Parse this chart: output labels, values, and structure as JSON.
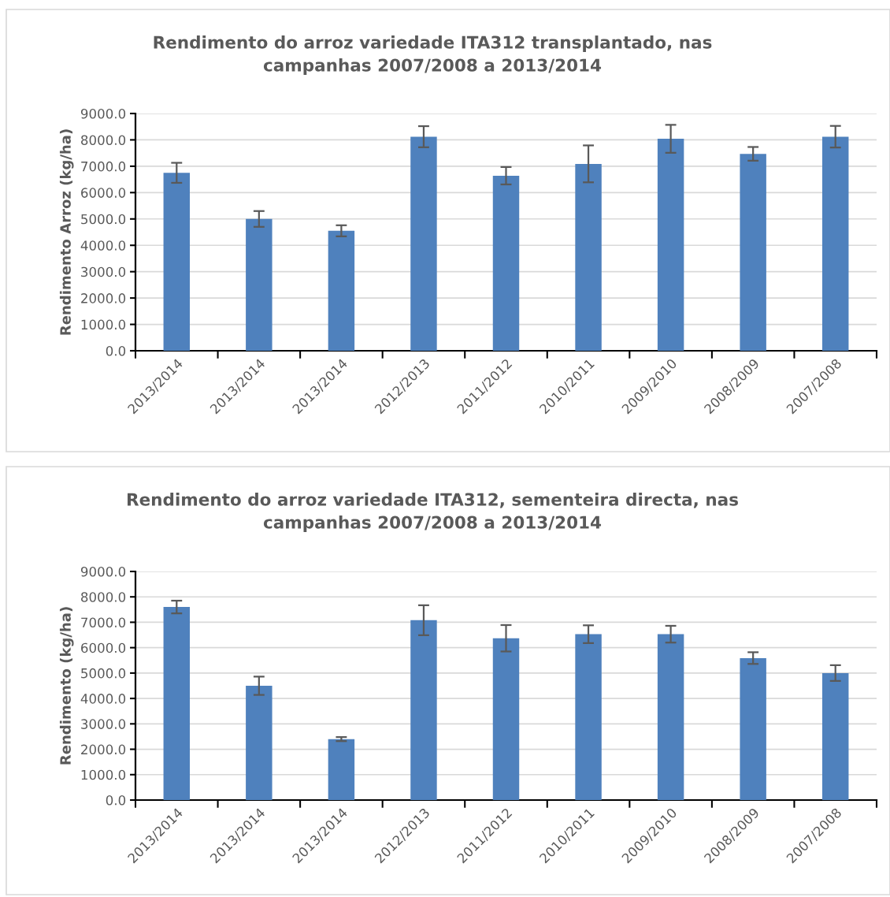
{
  "chart_data": [
    {
      "type": "bar",
      "title": "Rendimento do arroz variedade ITA312 transplantado, nas\ncampanhas 2007/2008 a 2013/2014",
      "ylabel": "Rendimento Arroz (kg/ha)",
      "categories": [
        "2013/2014",
        "2013/2014",
        "2013/2014",
        "2012/2013",
        "2011/2012",
        "2010/2011",
        "2009/2010",
        "2008/2009",
        "2007/2008"
      ],
      "values": [
        6750,
        5000,
        4550,
        8120,
        6640,
        7090,
        8040,
        7470,
        8120
      ],
      "errors": [
        380,
        300,
        210,
        400,
        330,
        700,
        530,
        260,
        410
      ],
      "color": "#4f81bd",
      "ylim": [
        0,
        9000
      ],
      "yticks": [
        {
          "value": 0,
          "label": "0.0"
        },
        {
          "value": 1000,
          "label": "1000.0"
        },
        {
          "value": 2000,
          "label": "2000.0"
        },
        {
          "value": 3000,
          "label": "3000.0"
        },
        {
          "value": 4000,
          "label": "4000.0"
        },
        {
          "value": 5000,
          "label": "5000.0"
        },
        {
          "value": 6000,
          "label": "6000.0"
        },
        {
          "value": 7000,
          "label": "7000.0"
        },
        {
          "value": 8000,
          "label": "8000.0"
        },
        {
          "value": 9000,
          "label": "9000.0"
        }
      ],
      "grid": "y"
    },
    {
      "type": "bar",
      "title": "Rendimento do arroz variedade ITA312, sementeira directa, nas\ncampanhas 2007/2008 a 2013/2014",
      "ylabel": "Rendimento (kg/ha)",
      "categories": [
        "2013/2014",
        "2013/2014",
        "2013/2014",
        "2012/2013",
        "2011/2012",
        "2010/2011",
        "2009/2010",
        "2008/2009",
        "2007/2008"
      ],
      "values": [
        7600,
        4500,
        2400,
        7080,
        6370,
        6530,
        6530,
        5590,
        5000
      ],
      "errors": [
        250,
        360,
        80,
        590,
        520,
        350,
        330,
        230,
        310
      ],
      "color": "#4f81bd",
      "ylim": [
        0,
        9000
      ],
      "yticks": [
        {
          "value": 0,
          "label": "0.0"
        },
        {
          "value": 1000,
          "label": "1000.0"
        },
        {
          "value": 2000,
          "label": "2000.0"
        },
        {
          "value": 3000,
          "label": "3000.0"
        },
        {
          "value": 4000,
          "label": "4000.0"
        },
        {
          "value": 5000,
          "label": "5000.0"
        },
        {
          "value": 6000,
          "label": "6000.0"
        },
        {
          "value": 7000,
          "label": "7000.0"
        },
        {
          "value": 8000,
          "label": "8000.0"
        },
        {
          "value": 9000,
          "label": "9000.0"
        }
      ],
      "grid": "y"
    }
  ]
}
